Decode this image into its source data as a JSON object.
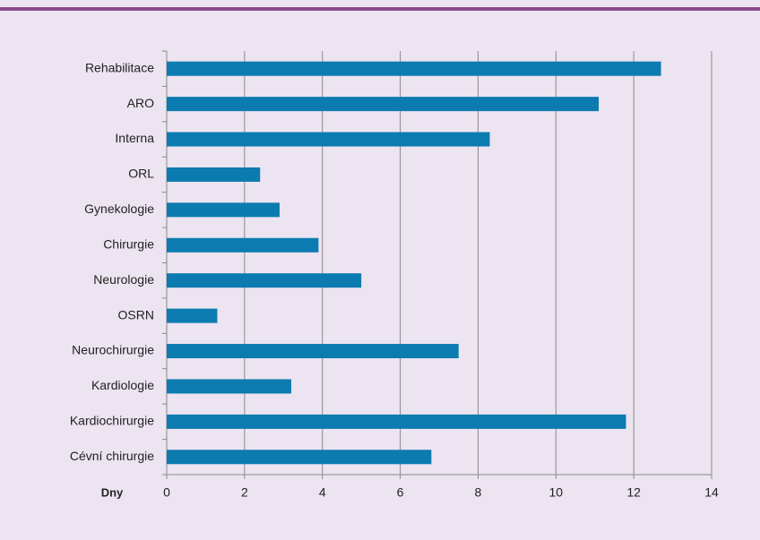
{
  "chart_data": {
    "type": "bar",
    "orientation": "horizontal",
    "categories": [
      "Rehabilitace",
      "ARO",
      "Interna",
      "ORL",
      "Gynekologie",
      "Chirurgie",
      "Neurologie",
      "OSRN",
      "Neurochirurgie",
      "Kardiologie",
      "Kardiochirurgie",
      "Cévní chirurgie"
    ],
    "values": [
      12.7,
      11.1,
      8.3,
      2.4,
      2.9,
      3.9,
      5.0,
      1.3,
      7.5,
      3.2,
      11.8,
      6.8
    ],
    "color": "#0b7bb0",
    "x_label": "Dny",
    "xlim": [
      0,
      14
    ],
    "xticks": [
      0,
      2,
      4,
      6,
      8,
      10,
      12,
      14
    ],
    "grid": true
  }
}
